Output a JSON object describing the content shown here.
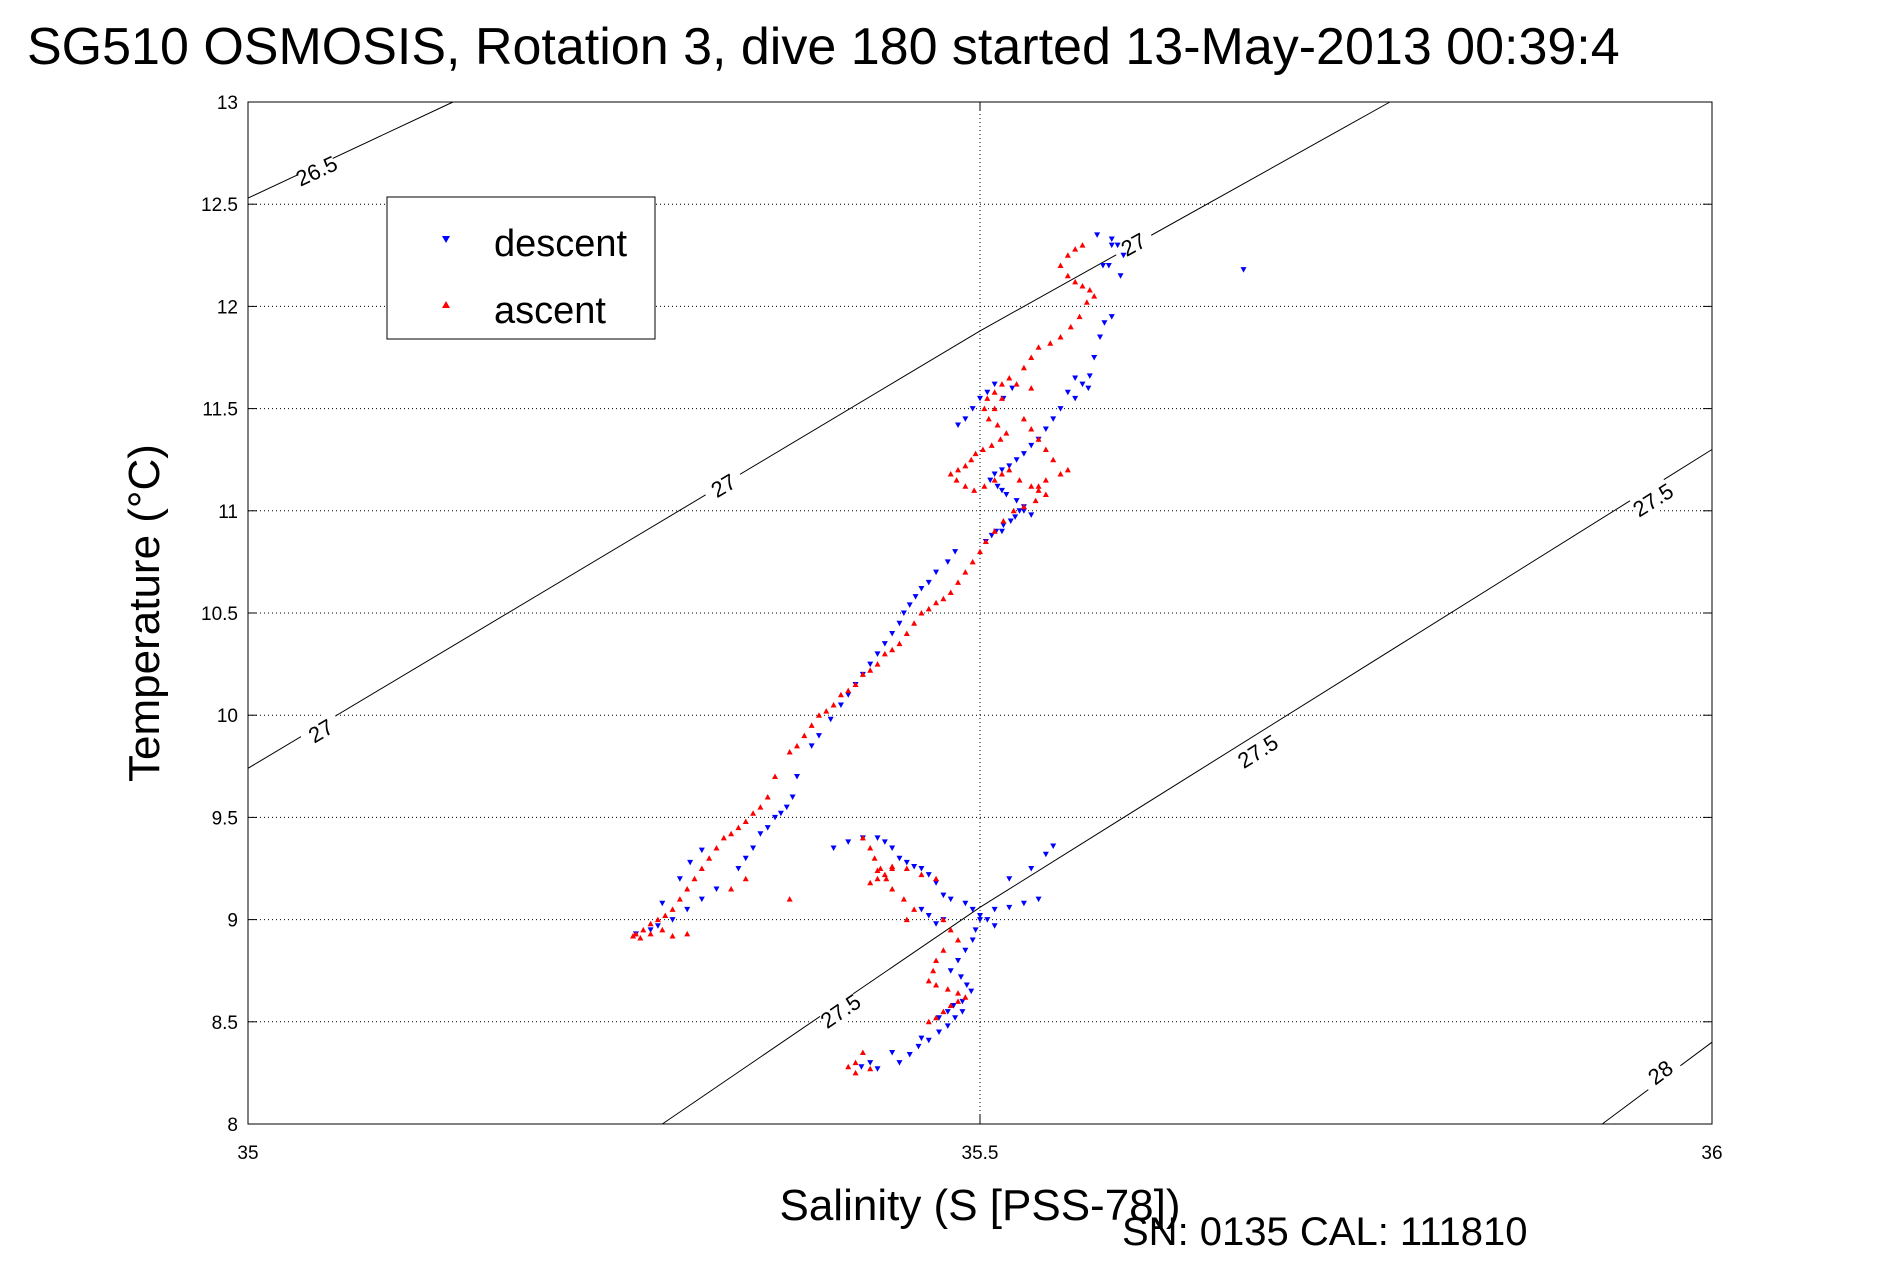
{
  "chart_data": {
    "type": "scatter",
    "title": "SG510 OSMOSIS, Rotation 3, dive 180 started 13-May-2013 00:39:4",
    "xlabel": "Salinity (S [PSS-78])",
    "ylabel": "Temperature (°C)",
    "footnote": "SN: 0135  CAL: 111810",
    "xlim": [
      35,
      36
    ],
    "ylim": [
      8,
      13
    ],
    "xticks": [
      35,
      35.5,
      36
    ],
    "xtick_labels": [
      "35",
      "35.5",
      "36"
    ],
    "yticks": [
      8,
      8.5,
      9,
      9.5,
      10,
      10.5,
      11,
      11.5,
      12,
      12.5,
      13
    ],
    "ytick_labels": [
      "8",
      "8.5",
      "9",
      "9.5",
      "10",
      "10.5",
      "11",
      "11.5",
      "12",
      "12.5",
      "13"
    ],
    "grid": true,
    "legend_position": "top-left",
    "density_contours": [
      {
        "label": "26.5",
        "points": [
          [
            35.0,
            12.53
          ],
          [
            35.14,
            13.0
          ]
        ],
        "labels_at": [
          [
            35.047,
            12.66
          ]
        ]
      },
      {
        "label": "27",
        "points": [
          [
            35.0,
            9.74
          ],
          [
            35.5,
            11.88
          ],
          [
            35.78,
            13.0
          ]
        ],
        "labels_at": [
          [
            35.05,
            9.92
          ],
          [
            35.325,
            11.12
          ],
          [
            35.605,
            12.3
          ]
        ]
      },
      {
        "label": "27.5",
        "points": [
          [
            35.283,
            8.0
          ],
          [
            35.5,
            9.06
          ],
          [
            36.0,
            11.3
          ]
        ],
        "labels_at": [
          [
            35.405,
            8.55
          ],
          [
            35.69,
            9.82
          ],
          [
            35.96,
            11.05
          ]
        ]
      },
      {
        "label": "28",
        "points": [
          [
            35.925,
            8.0
          ],
          [
            36.0,
            8.4
          ]
        ],
        "labels_at": [
          [
            35.965,
            8.25
          ]
        ]
      }
    ],
    "series": [
      {
        "name": "descent",
        "color": "#0000ff",
        "marker": "triangle-down",
        "x": [
          35.58,
          35.59,
          35.594,
          35.598,
          35.588,
          35.596,
          35.59,
          35.585,
          35.582,
          35.578,
          35.575,
          35.565,
          35.57,
          35.574,
          35.56,
          35.565,
          35.555,
          35.55,
          35.545,
          35.54,
          35.535,
          35.53,
          35.525,
          35.52,
          35.515,
          35.51,
          35.507,
          35.512,
          35.515,
          35.518,
          35.525,
          35.53,
          35.535,
          35.527,
          35.521,
          35.515,
          35.508,
          35.504,
          35.511,
          35.516,
          35.524,
          35.53,
          35.522,
          35.516,
          35.51,
          35.505,
          35.5,
          35.495,
          35.49,
          35.485,
          35.483,
          35.478,
          35.47,
          35.465,
          35.46,
          35.456,
          35.452,
          35.448,
          35.445,
          35.44,
          35.435,
          35.43,
          35.425,
          35.42,
          35.415,
          35.41,
          35.405,
          35.398,
          35.39,
          35.385,
          35.375,
          35.372,
          35.368,
          35.364,
          35.36,
          35.355,
          35.35,
          35.345,
          35.34,
          35.335,
          35.32,
          35.31,
          35.3,
          35.29,
          35.28,
          35.275,
          35.265,
          35.283,
          35.295,
          35.302,
          35.31,
          35.4,
          35.41,
          35.42,
          35.43,
          35.435,
          35.44,
          35.445,
          35.45,
          35.455,
          35.46,
          35.465,
          35.47,
          35.475,
          35.48,
          35.49,
          35.495,
          35.5,
          35.505,
          35.51,
          35.52,
          35.535,
          35.545,
          35.55,
          35.54,
          35.53,
          35.52,
          35.51,
          35.5,
          35.497,
          35.495,
          35.49,
          35.485,
          35.48,
          35.487,
          35.491,
          35.494,
          35.488,
          35.482,
          35.478,
          35.472,
          35.46,
          35.44,
          35.425,
          35.419,
          35.43,
          35.445,
          35.452,
          35.458,
          35.465,
          35.472,
          35.478,
          35.483,
          35.488,
          35.68,
          35.59,
          35.584,
          35.475,
          35.47,
          35.465,
          35.46
        ],
        "y": [
          12.35,
          12.33,
          12.3,
          12.25,
          12.2,
          12.15,
          11.95,
          11.92,
          11.85,
          11.75,
          11.66,
          11.65,
          11.62,
          11.6,
          11.58,
          11.55,
          11.5,
          11.45,
          11.4,
          11.35,
          11.32,
          11.28,
          11.25,
          11.22,
          11.2,
          11.18,
          11.15,
          11.12,
          11.1,
          11.08,
          11.05,
          11.02,
          10.98,
          11.0,
          10.95,
          10.9,
          10.88,
          10.85,
          10.9,
          10.93,
          10.97,
          11.0,
          11.6,
          11.55,
          11.62,
          11.58,
          11.55,
          11.5,
          11.45,
          11.42,
          10.8,
          10.75,
          10.7,
          10.65,
          10.62,
          10.58,
          10.54,
          10.5,
          10.45,
          10.4,
          10.35,
          10.3,
          10.25,
          10.2,
          10.15,
          10.1,
          10.05,
          9.98,
          9.9,
          9.85,
          9.7,
          9.6,
          9.55,
          9.52,
          9.5,
          9.45,
          9.42,
          9.35,
          9.3,
          9.25,
          9.15,
          9.1,
          9.05,
          9.0,
          8.97,
          8.95,
          8.93,
          9.08,
          9.2,
          9.28,
          9.34,
          9.35,
          9.38,
          9.4,
          9.4,
          9.38,
          9.35,
          9.3,
          9.28,
          9.26,
          9.25,
          9.22,
          9.18,
          9.12,
          9.1,
          9.08,
          9.05,
          9.02,
          9.0,
          8.97,
          9.2,
          9.25,
          9.32,
          9.36,
          9.1,
          9.08,
          9.06,
          9.05,
          9.0,
          8.95,
          8.9,
          8.85,
          8.8,
          8.75,
          8.72,
          8.68,
          8.65,
          8.6,
          8.58,
          8.55,
          8.52,
          8.42,
          8.35,
          8.3,
          8.28,
          8.27,
          8.3,
          8.34,
          8.38,
          8.41,
          8.45,
          8.48,
          8.52,
          8.55,
          12.18,
          12.3,
          12.2,
          9.0,
          8.98,
          9.02,
          9.05
        ]
      },
      {
        "name": "ascent",
        "color": "#ff0000",
        "marker": "triangle-up",
        "x": [
          35.57,
          35.565,
          35.56,
          35.555,
          35.56,
          35.565,
          35.57,
          35.575,
          35.578,
          35.573,
          35.568,
          35.562,
          35.555,
          35.548,
          35.54,
          35.535,
          35.53,
          35.52,
          35.515,
          35.51,
          35.505,
          35.503,
          35.506,
          35.512,
          35.518,
          35.514,
          35.508,
          35.502,
          35.497,
          35.494,
          35.49,
          35.485,
          35.48,
          35.484,
          35.49,
          35.496,
          35.503,
          35.51,
          35.515,
          35.52,
          35.527,
          35.535,
          35.54,
          35.545,
          35.538,
          35.53,
          35.523,
          35.516,
          35.51,
          35.504,
          35.5,
          35.495,
          35.49,
          35.485,
          35.48,
          35.475,
          35.47,
          35.465,
          35.46,
          35.455,
          35.45,
          35.445,
          35.44,
          35.435,
          35.43,
          35.425,
          35.42,
          35.415,
          35.41,
          35.405,
          35.4,
          35.395,
          35.39,
          35.385,
          35.38,
          35.375,
          35.37,
          35.36,
          35.355,
          35.35,
          35.345,
          35.34,
          35.335,
          35.33,
          35.325,
          35.32,
          35.315,
          35.31,
          35.305,
          35.3,
          35.295,
          35.29,
          35.285,
          35.28,
          35.275,
          35.27,
          35.265,
          35.263,
          35.268,
          35.275,
          35.283,
          35.29,
          35.3,
          35.33,
          35.34,
          35.37,
          35.42,
          35.425,
          35.428,
          35.432,
          35.436,
          35.44,
          35.448,
          35.455,
          35.45,
          35.44,
          35.435,
          35.43,
          35.425,
          35.43,
          35.44,
          35.45,
          35.46,
          35.47,
          35.475,
          35.48,
          35.485,
          35.475,
          35.47,
          35.468,
          35.465,
          35.47,
          35.478,
          35.485,
          35.49,
          35.485,
          35.48,
          35.475,
          35.47,
          35.465,
          35.42,
          35.415,
          35.41,
          35.415,
          35.425,
          35.53,
          35.535,
          35.54,
          35.545,
          35.55,
          35.535,
          35.525,
          35.515,
          35.51,
          35.56,
          35.555,
          35.545,
          35.54
        ],
        "y": [
          12.3,
          12.28,
          12.25,
          12.2,
          12.15,
          12.12,
          12.1,
          12.08,
          12.05,
          12.02,
          11.95,
          11.9,
          11.85,
          11.82,
          11.8,
          11.75,
          11.7,
          11.65,
          11.62,
          11.58,
          11.55,
          11.5,
          11.45,
          11.42,
          11.38,
          11.35,
          11.32,
          11.3,
          11.28,
          11.25,
          11.22,
          11.2,
          11.18,
          11.15,
          11.12,
          11.1,
          11.12,
          11.15,
          11.18,
          11.2,
          11.15,
          11.12,
          11.1,
          11.08,
          11.05,
          11.02,
          11.0,
          10.95,
          10.9,
          10.85,
          10.8,
          10.75,
          10.7,
          10.65,
          10.6,
          10.57,
          10.55,
          10.52,
          10.5,
          10.45,
          10.4,
          10.35,
          10.32,
          10.3,
          10.25,
          10.22,
          10.2,
          10.15,
          10.12,
          10.1,
          10.05,
          10.02,
          10.0,
          9.95,
          9.9,
          9.85,
          9.82,
          9.7,
          9.6,
          9.55,
          9.52,
          9.48,
          9.45,
          9.42,
          9.4,
          9.35,
          9.3,
          9.25,
          9.2,
          9.15,
          9.1,
          9.05,
          9.02,
          9.0,
          8.98,
          8.95,
          8.93,
          8.92,
          8.91,
          8.93,
          8.95,
          8.92,
          8.93,
          9.15,
          9.2,
          9.1,
          9.4,
          9.35,
          9.3,
          9.25,
          9.2,
          9.15,
          9.1,
          9.05,
          9.0,
          9.25,
          9.22,
          9.2,
          9.18,
          9.24,
          9.26,
          9.25,
          9.22,
          9.2,
          9.0,
          8.95,
          8.9,
          8.85,
          8.8,
          8.75,
          8.7,
          8.68,
          8.66,
          8.64,
          8.62,
          8.6,
          8.58,
          8.55,
          8.52,
          8.5,
          8.35,
          8.3,
          8.28,
          8.25,
          8.27,
          11.45,
          11.4,
          11.35,
          11.3,
          11.25,
          11.6,
          11.62,
          11.55,
          11.5,
          11.2,
          11.18,
          11.15,
          11.12
        ]
      }
    ]
  }
}
